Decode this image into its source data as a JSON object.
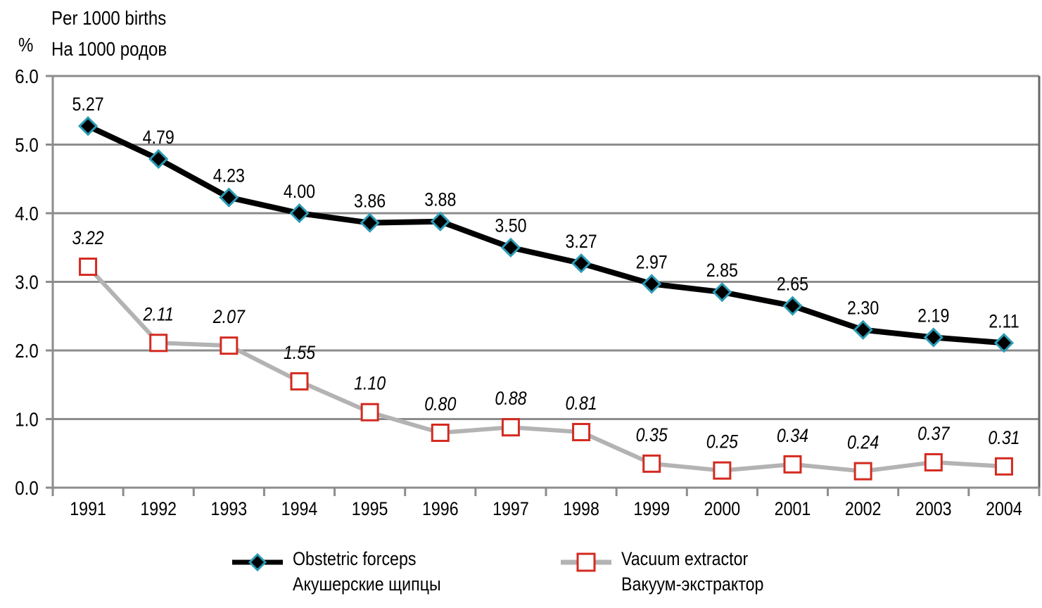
{
  "chart_data": {
    "type": "line",
    "title": "",
    "unit_label": "%",
    "ylabel_lines": [
      "Per 1000 births",
      "На 1000 родов"
    ],
    "xlabel": "",
    "ylim": [
      0.0,
      6.0
    ],
    "yticks": [
      "0.0",
      "1.0",
      "2.0",
      "3.0",
      "4.0",
      "5.0",
      "6.0"
    ],
    "grid": true,
    "legend_position": "bottom",
    "categories": [
      "1991",
      "1992",
      "1993",
      "1994",
      "1995",
      "1996",
      "1997",
      "1998",
      "1999",
      "2000",
      "2001",
      "2002",
      "2003",
      "2004"
    ],
    "series": [
      {
        "name": "Obstetric forceps",
        "name_ru": "Акушерские щипцы",
        "values": [
          5.27,
          4.79,
          4.23,
          4.0,
          3.86,
          3.88,
          3.5,
          3.27,
          2.97,
          2.85,
          2.65,
          2.3,
          2.19,
          2.11
        ],
        "labels": [
          "5.27",
          "4.79",
          "4.23",
          "4.00",
          "3.86",
          "3.88",
          "3.50",
          "3.27",
          "2.97",
          "2.85",
          "2.65",
          "2.30",
          "2.19",
          "2.11"
        ],
        "line_color": "#000000",
        "marker": "diamond",
        "marker_fill": "#000000",
        "marker_edge": "#2a9bb5"
      },
      {
        "name": "Vacuum extractor",
        "name_ru": "Вакуум-экстрактор",
        "values": [
          3.22,
          2.11,
          2.07,
          1.55,
          1.1,
          0.8,
          0.88,
          0.81,
          0.35,
          0.25,
          0.34,
          0.24,
          0.37,
          0.31
        ],
        "labels": [
          "3.22",
          "2.11",
          "2.07",
          "1.55",
          "1.10",
          "0.80",
          "0.88",
          "0.81",
          "0.35",
          "0.25",
          "0.34",
          "0.24",
          "0.37",
          "0.31"
        ],
        "line_color": "#b3b3b3",
        "marker": "square",
        "marker_fill": "#ffffff",
        "marker_edge": "#d42a20"
      }
    ],
    "grid_color": "#8c8c8c"
  }
}
